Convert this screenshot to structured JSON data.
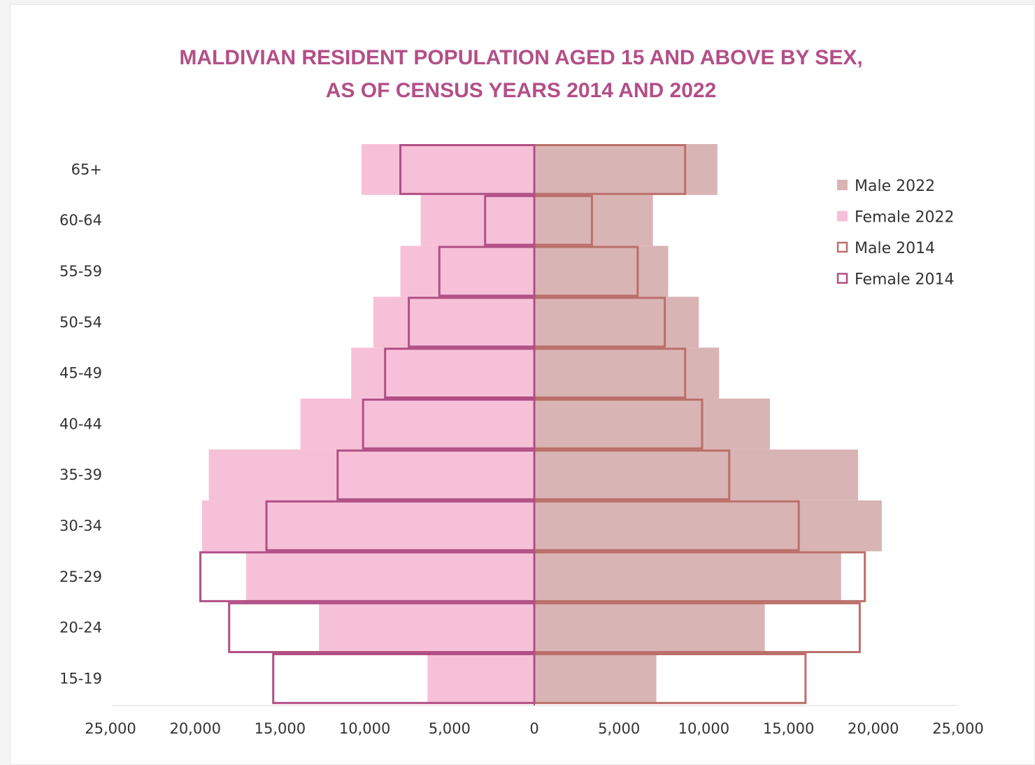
{
  "chart_data": {
    "type": "bar",
    "orientation": "population-pyramid",
    "title_lines": [
      "MALDIVIAN RESIDENT POPULATION AGED 15 AND ABOVE BY SEX,",
      "AS OF CENSUS YEARS 2014 AND 2022"
    ],
    "categories": [
      "65+",
      "60-64",
      "55-59",
      "50-54",
      "45-49",
      "40-44",
      "35-39",
      "30-34",
      "25-29",
      "20-24",
      "15-19"
    ],
    "series": [
      {
        "name": "Male 2022",
        "side": "right",
        "style": "filled",
        "color": "#d9b4b4",
        "values": [
          10800,
          7000,
          7900,
          9700,
          10900,
          13900,
          19100,
          20500,
          18100,
          13600,
          7200
        ]
      },
      {
        "name": "Female 2022",
        "side": "left",
        "style": "filled",
        "color": "#f6c1d8",
        "values": [
          10200,
          6700,
          7900,
          9500,
          10800,
          13800,
          19200,
          19600,
          17000,
          12700,
          6300
        ]
      },
      {
        "name": "Male 2014",
        "side": "right",
        "style": "outline",
        "color": "#bb6f6a",
        "values": [
          8900,
          3400,
          6100,
          7700,
          8900,
          9900,
          11500,
          15600,
          19500,
          19200,
          16000
        ]
      },
      {
        "name": "Female 2014",
        "side": "left",
        "style": "outline",
        "color": "#b14f85",
        "values": [
          7900,
          2900,
          5600,
          7400,
          8800,
          10100,
          11600,
          15800,
          19700,
          18000,
          15400
        ]
      }
    ],
    "x_ticks": [
      "25,000",
      "20,000",
      "15,000",
      "10,000",
      "5,000",
      "0",
      "5,000",
      "10,000",
      "15,000",
      "20,000",
      "25,000"
    ],
    "xlim": [
      -25000,
      25000
    ],
    "grid": false,
    "legend_placement": "top-right",
    "title_color": "#b34f87"
  }
}
